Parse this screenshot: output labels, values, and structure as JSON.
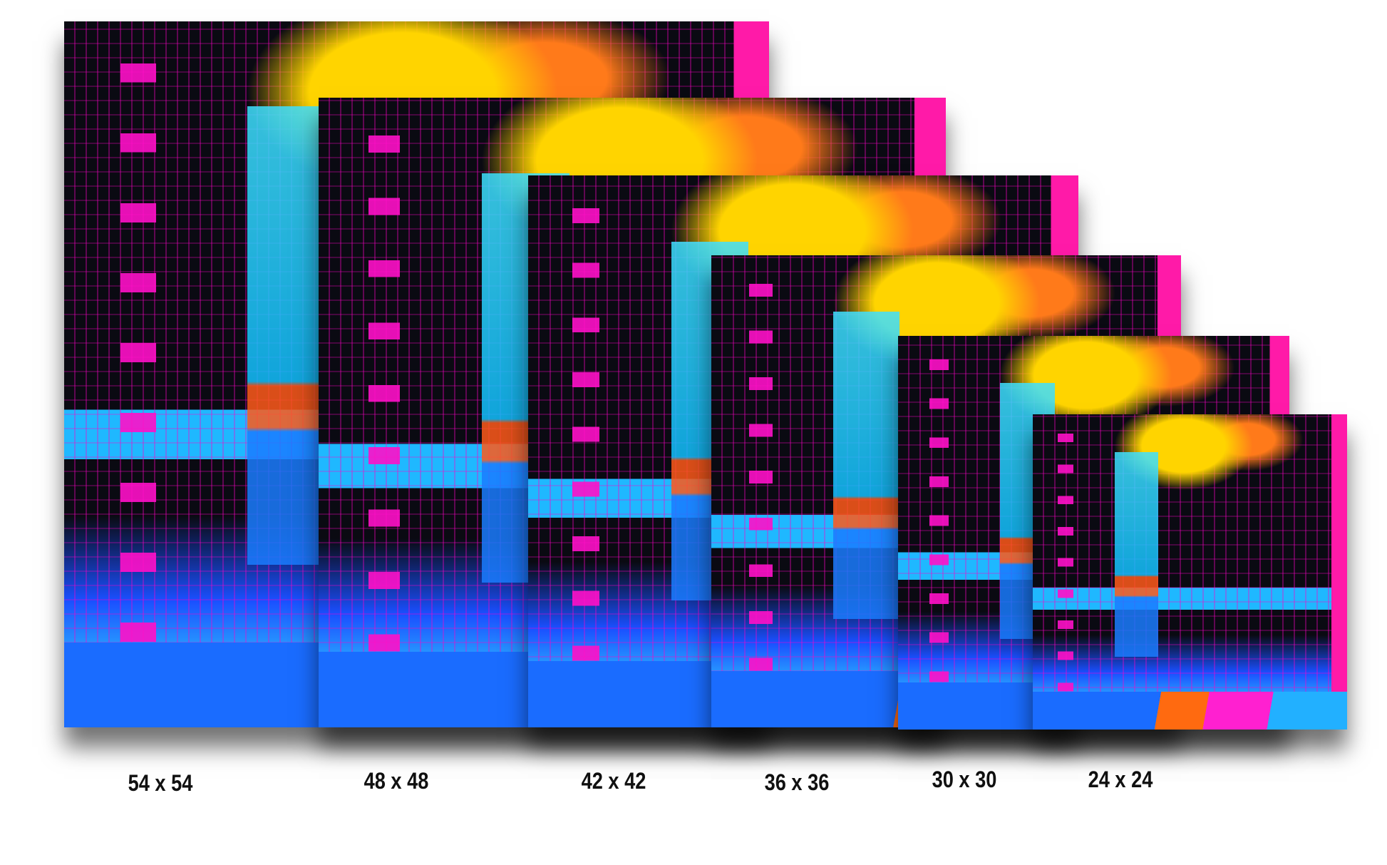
{
  "sizes": [
    {
      "label": "54 x 54"
    },
    {
      "label": "48 x 48"
    },
    {
      "label": "42 x 42"
    },
    {
      "label": "36 x 36"
    },
    {
      "label": "30 x 30"
    },
    {
      "label": "24 x 24"
    }
  ],
  "colors": {
    "black": "#0a0a12",
    "pink": "#ff10c8",
    "cyan": "#3fe0ff",
    "yellow": "#ffd400",
    "orange": "#ff6a10",
    "blue": "#1a6cff"
  }
}
